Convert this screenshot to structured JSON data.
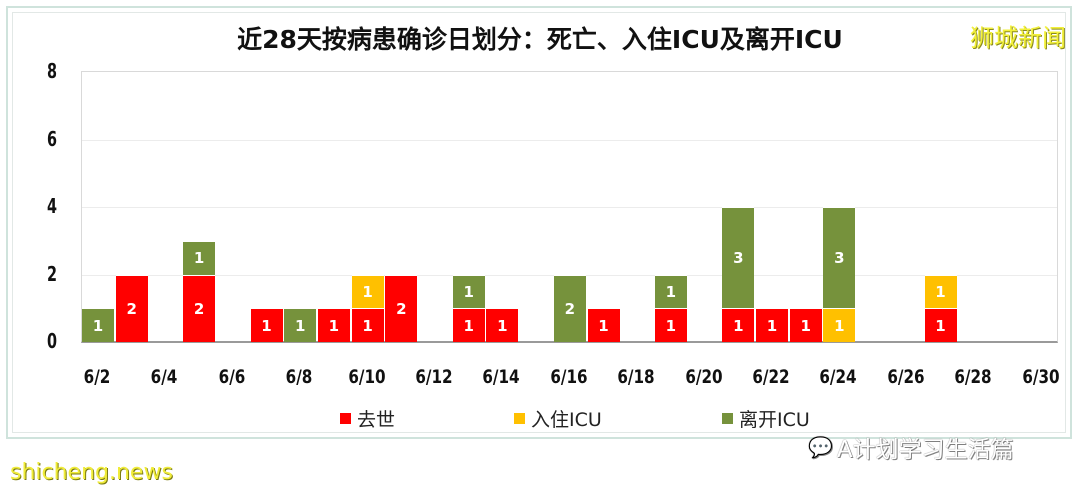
{
  "header": {
    "title": "近28天按病患确诊日划分：死亡、入住ICU及离开ICU",
    "brand": "狮城新闻"
  },
  "watermarks": {
    "bottom_left": "shicheng.news",
    "bottom_right": "A计划学习生活篇"
  },
  "colors": {
    "death": "#ff0000",
    "icu_in": "#ffc000",
    "icu_out": "#76923c"
  },
  "chart_data": {
    "type": "bar",
    "stacked": true,
    "title": "近28天按病患确诊日划分：死亡、入住ICU及离开ICU",
    "xlabel": "",
    "ylabel": "",
    "ylim": [
      0,
      8
    ],
    "yticks": [
      "0",
      "2",
      "4",
      "6",
      "8"
    ],
    "grid": true,
    "legend_position": "bottom",
    "xtick_labels": [
      "6/2",
      "6/4",
      "6/6",
      "6/8",
      "6/10",
      "6/12",
      "6/14",
      "6/16",
      "6/18",
      "6/20",
      "6/22",
      "6/24",
      "6/26",
      "6/28",
      "6/30"
    ],
    "categories": [
      "6/2",
      "6/3",
      "6/4",
      "6/5",
      "6/6",
      "6/7",
      "6/8",
      "6/9",
      "6/10",
      "6/11",
      "6/12",
      "6/13",
      "6/14",
      "6/15",
      "6/16",
      "6/17",
      "6/18",
      "6/19",
      "6/20",
      "6/21",
      "6/22",
      "6/23",
      "6/24",
      "6/25",
      "6/26",
      "6/27",
      "6/28",
      "6/29",
      "6/30"
    ],
    "series": [
      {
        "name": "去世",
        "color": "#ff0000",
        "values": [
          0,
          2,
          0,
          2,
          0,
          1,
          0,
          1,
          1,
          2,
          0,
          1,
          1,
          0,
          0,
          1,
          0,
          1,
          0,
          1,
          1,
          1,
          0,
          0,
          0,
          1,
          0,
          0,
          0
        ]
      },
      {
        "name": "入住ICU",
        "color": "#ffc000",
        "values": [
          0,
          0,
          0,
          0,
          0,
          0,
          0,
          0,
          1,
          0,
          0,
          0,
          0,
          0,
          0,
          0,
          0,
          0,
          0,
          0,
          0,
          0,
          1,
          0,
          0,
          1,
          0,
          0,
          0
        ]
      },
      {
        "name": "离开ICU",
        "color": "#76923c",
        "values": [
          1,
          0,
          0,
          1,
          0,
          0,
          1,
          0,
          0,
          0,
          0,
          1,
          0,
          0,
          2,
          0,
          0,
          1,
          0,
          3,
          0,
          0,
          3,
          0,
          0,
          0,
          0,
          0,
          0
        ]
      }
    ]
  },
  "legend": [
    {
      "label": "去世",
      "color": "#ff0000"
    },
    {
      "label": "入住ICU",
      "color": "#ffc000"
    },
    {
      "label": "离开ICU",
      "color": "#76923c"
    }
  ]
}
